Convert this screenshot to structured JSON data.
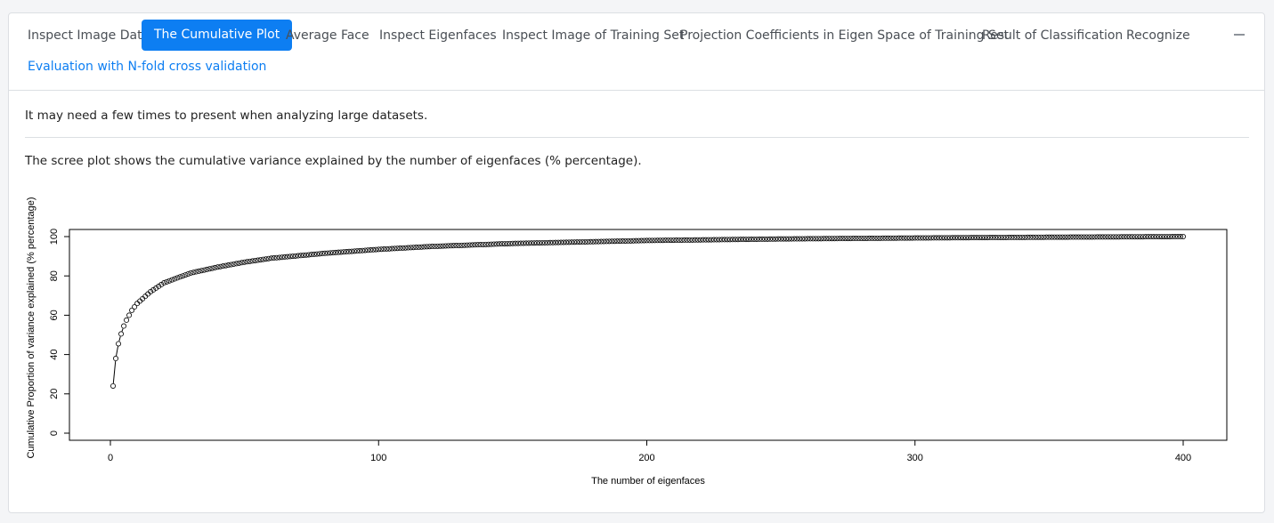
{
  "tabs": [
    {
      "label": "Inspect Image Data",
      "active": false
    },
    {
      "label": "The Cumulative Plot",
      "active": true
    },
    {
      "label": "Average Face",
      "active": false
    },
    {
      "label": "Inspect Eigenfaces",
      "active": false
    },
    {
      "label": "Inspect Image of Training Set",
      "active": false
    },
    {
      "label": "Projection Coefficients in Eigen Space of Training Set",
      "active": false
    },
    {
      "label": "Result of Classification",
      "active": false
    },
    {
      "label": "Recognize",
      "active": false
    },
    {
      "label": "Evaluation with N-fold cross validation",
      "active": false
    }
  ],
  "notes": {
    "large_dataset": "It may need a few times to present when analyzing large datasets.",
    "scree_description": "The scree plot shows the cumulative variance explained by the number of eigenfaces (% percentage)."
  },
  "colors": {
    "accent": "#0d7ef2",
    "tab_text": "#4a4f55"
  },
  "icons": {
    "collapse": "minus-icon"
  },
  "chart_data": {
    "type": "scatter",
    "title": "",
    "xlabel": "The number of eigenfaces",
    "ylabel": "Cumulative Proportion of variance explained (% percentage)",
    "xlim": [
      0,
      400
    ],
    "ylim": [
      0,
      100
    ],
    "x_ticks": [
      "0",
      "100",
      "200",
      "300",
      "400"
    ],
    "y_ticks": [
      "0",
      "20",
      "40",
      "60",
      "80",
      "100"
    ],
    "n_points": 400,
    "connected_first_points": true,
    "sample_points": {
      "x": [
        1,
        2,
        3,
        4,
        5,
        6,
        7,
        8,
        10,
        15,
        20,
        30,
        40,
        50,
        60,
        80,
        100,
        120,
        150,
        200,
        250,
        300,
        350,
        400
      ],
      "y": [
        24,
        38,
        45.5,
        50.5,
        54.5,
        57.5,
        60,
        62.5,
        66,
        72,
        76.5,
        81.5,
        84.5,
        87,
        89,
        91.5,
        93.5,
        95,
        96.5,
        98,
        98.8,
        99.3,
        99.7,
        100
      ]
    },
    "grid": false,
    "legend": "none"
  }
}
